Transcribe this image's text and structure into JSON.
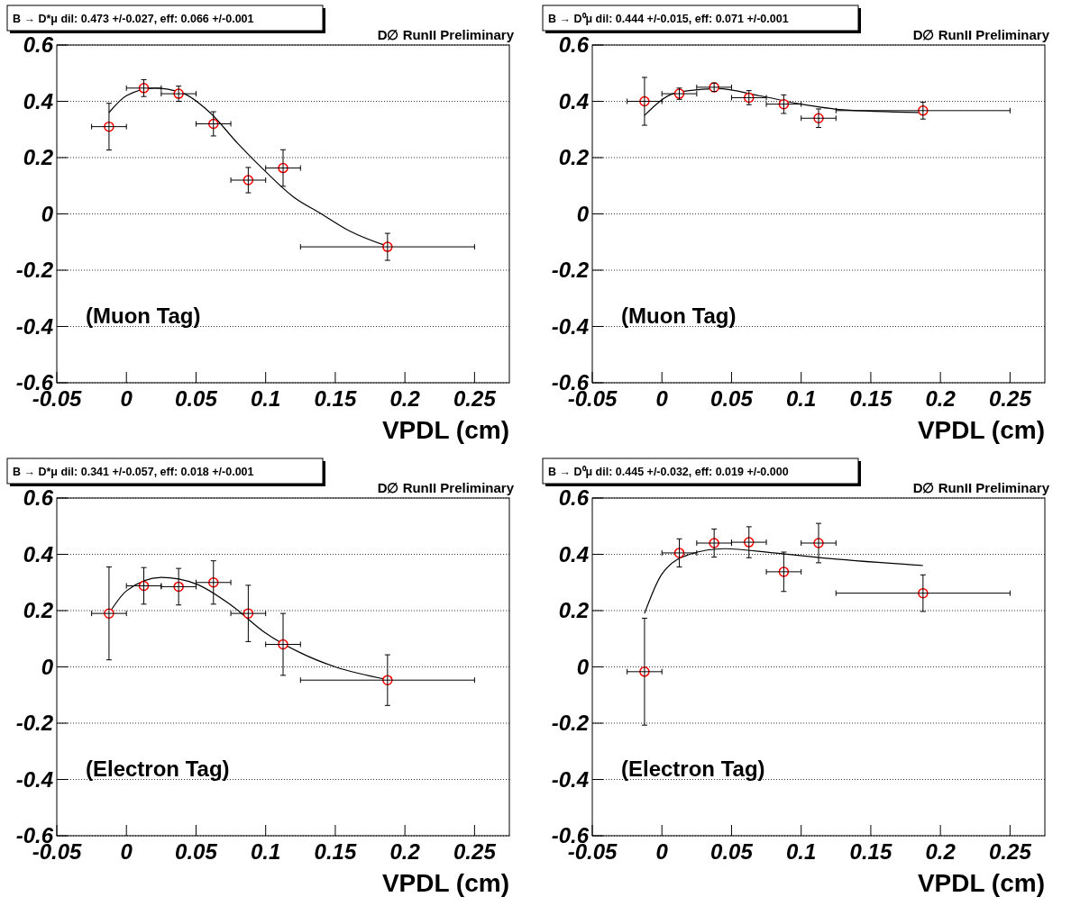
{
  "chart_data": [
    {
      "type": "scatter",
      "title": "B → D*μ dil: 0.473 +/-0.027, eff: 0.066 +/-0.001",
      "xlabel": "VPDL (cm)",
      "annotations": [
        "D∅ RunII Preliminary",
        "(Muon Tag)"
      ],
      "grid": "y",
      "marker": "circle",
      "xlim": [
        -0.05,
        0.275
      ],
      "xticks": [
        -0.05,
        0,
        0.05,
        0.1,
        0.15,
        0.2,
        0.25
      ],
      "ylim": [
        -0.6,
        0.6
      ],
      "yticks": [
        -0.6,
        -0.4,
        -0.2,
        0,
        0.2,
        0.4,
        0.6
      ],
      "x": [
        -0.0125,
        0.0125,
        0.0375,
        0.0625,
        0.0875,
        0.1125,
        0.1875
      ],
      "series": [
        {
          "type": "scatter",
          "color": "#ff0000",
          "values": [
            0.31,
            0.447,
            0.427,
            0.32,
            0.12,
            0.163,
            -0.117
          ],
          "errors": [
            0.083,
            0.03,
            0.027,
            0.043,
            0.045,
            0.065,
            0.048
          ],
          "xerrors": [
            0.0125,
            0.0125,
            0.0125,
            0.0125,
            0.0125,
            0.0125,
            0.0625
          ]
        },
        {
          "type": "line",
          "color": "#000000",
          "marker": "none",
          "x": [
            -0.0125,
            0,
            0.02,
            0.04,
            0.06,
            0.08,
            0.1,
            0.12,
            0.14,
            0.16,
            0.1875
          ],
          "values": [
            0.36,
            0.42,
            0.447,
            0.43,
            0.36,
            0.25,
            0.15,
            0.06,
            0.0,
            -0.06,
            -0.115
          ]
        }
      ]
    },
    {
      "type": "scatter",
      "title": "B → D⁰μ dil: 0.444 +/-0.015, eff: 0.071 +/-0.001",
      "xlabel": "VPDL (cm)",
      "annotations": [
        "D∅ RunII Preliminary",
        "(Muon Tag)"
      ],
      "grid": "y",
      "marker": "circle",
      "xlim": [
        -0.05,
        0.275
      ],
      "xticks": [
        -0.05,
        0,
        0.05,
        0.1,
        0.15,
        0.2,
        0.25
      ],
      "ylim": [
        -0.6,
        0.6
      ],
      "yticks": [
        -0.6,
        -0.4,
        -0.2,
        0,
        0.2,
        0.4,
        0.6
      ],
      "x": [
        -0.0125,
        0.0125,
        0.0375,
        0.0625,
        0.0875,
        0.1125,
        0.1875
      ],
      "series": [
        {
          "type": "scatter",
          "color": "#ff0000",
          "values": [
            0.4,
            0.427,
            0.45,
            0.413,
            0.39,
            0.34,
            0.367
          ],
          "errors": [
            0.085,
            0.02,
            0.015,
            0.025,
            0.033,
            0.033,
            0.03
          ],
          "xerrors": [
            0.0125,
            0.0125,
            0.0125,
            0.0125,
            0.0125,
            0.0125,
            0.0625
          ]
        },
        {
          "type": "line",
          "color": "#000000",
          "marker": "none",
          "x": [
            -0.0125,
            0.01,
            0.04,
            0.07,
            0.1,
            0.13,
            0.1875
          ],
          "values": [
            0.35,
            0.43,
            0.445,
            0.42,
            0.39,
            0.37,
            0.36
          ]
        }
      ]
    },
    {
      "type": "scatter",
      "title": "B → D*μ dil: 0.341 +/-0.057, eff: 0.018 +/-0.001",
      "xlabel": "VPDL (cm)",
      "annotations": [
        "D∅ RunII Preliminary",
        "(Electron Tag)"
      ],
      "grid": "y",
      "marker": "circle",
      "xlim": [
        -0.05,
        0.275
      ],
      "xticks": [
        -0.05,
        0,
        0.05,
        0.1,
        0.15,
        0.2,
        0.25
      ],
      "ylim": [
        -0.6,
        0.6
      ],
      "yticks": [
        -0.6,
        -0.4,
        -0.2,
        0,
        0.2,
        0.4,
        0.6
      ],
      "x": [
        -0.0125,
        0.0125,
        0.0375,
        0.0625,
        0.0875,
        0.1125,
        0.1875
      ],
      "series": [
        {
          "type": "scatter",
          "color": "#ff0000",
          "values": [
            0.19,
            0.288,
            0.285,
            0.3,
            0.19,
            0.08,
            -0.047
          ],
          "errors": [
            0.165,
            0.065,
            0.065,
            0.077,
            0.1,
            0.11,
            0.09
          ],
          "xerrors": [
            0.0125,
            0.0125,
            0.0125,
            0.0125,
            0.0125,
            0.0125,
            0.0625
          ]
        },
        {
          "type": "line",
          "color": "#000000",
          "marker": "none",
          "x": [
            -0.0125,
            0,
            0.025,
            0.05,
            0.075,
            0.1,
            0.125,
            0.15,
            0.1875
          ],
          "values": [
            0.19,
            0.27,
            0.318,
            0.295,
            0.22,
            0.12,
            0.05,
            0.0,
            -0.045
          ]
        }
      ]
    },
    {
      "type": "scatter",
      "title": "B → D⁰μ dil: 0.445 +/-0.032, eff: 0.019 +/-0.000",
      "xlabel": "VPDL (cm)",
      "annotations": [
        "D∅ RunII Preliminary",
        "(Electron Tag)"
      ],
      "grid": "y",
      "marker": "circle",
      "xlim": [
        -0.05,
        0.275
      ],
      "xticks": [
        -0.05,
        0,
        0.05,
        0.1,
        0.15,
        0.2,
        0.25
      ],
      "ylim": [
        -0.6,
        0.6
      ],
      "yticks": [
        -0.6,
        -0.4,
        -0.2,
        0,
        0.2,
        0.4,
        0.6
      ],
      "x": [
        -0.0125,
        0.0125,
        0.0375,
        0.0625,
        0.0875,
        0.1125,
        0.1875
      ],
      "series": [
        {
          "type": "scatter",
          "color": "#ff0000",
          "values": [
            -0.017,
            0.405,
            0.44,
            0.443,
            0.338,
            0.44,
            0.262
          ],
          "errors": [
            0.19,
            0.05,
            0.05,
            0.055,
            0.07,
            0.07,
            0.065
          ],
          "xerrors": [
            0.0125,
            0.0125,
            0.0125,
            0.0125,
            0.0125,
            0.0125,
            0.0625
          ]
        },
        {
          "type": "line",
          "color": "#000000",
          "marker": "none",
          "x": [
            -0.0125,
            0,
            0.02,
            0.045,
            0.08,
            0.12,
            0.1875
          ],
          "values": [
            0.19,
            0.33,
            0.4,
            0.42,
            0.405,
            0.385,
            0.36
          ]
        }
      ]
    }
  ]
}
